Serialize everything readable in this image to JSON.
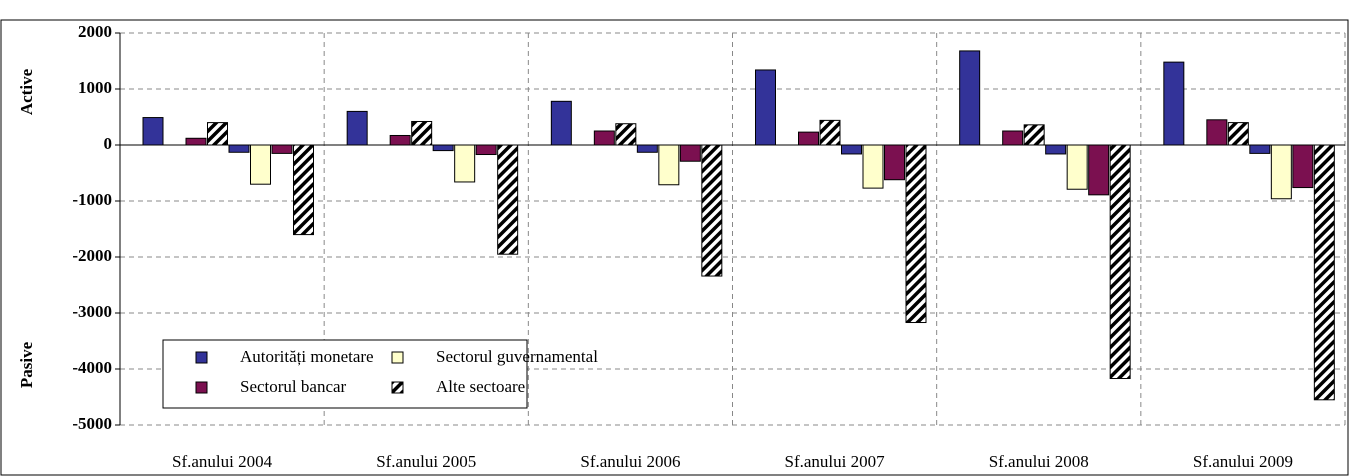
{
  "chart_data": {
    "type": "bar",
    "y_label_top": "Active",
    "y_label_bottom": "Pasive",
    "categories": [
      "Sf.anului 2004",
      "Sf.anului 2005",
      "Sf.anului 2006",
      "Sf.anului 2007",
      "Sf.anului 2008",
      "Sf.anului 2009"
    ],
    "series": [
      {
        "name": "Autorități monetare",
        "color": "#333399",
        "hatch": false,
        "values": [
          490,
          600,
          780,
          1340,
          1680,
          1480
        ],
        "values_pasive": [
          -130,
          -100,
          -130,
          -160,
          -160,
          -150
        ]
      },
      {
        "name": "Sectorul guvernamental",
        "color": "#ffffcc",
        "hatch": false,
        "values": [
          0,
          0,
          0,
          0,
          0,
          0
        ],
        "values_pasive": [
          -700,
          -660,
          -710,
          -770,
          -790,
          -960
        ]
      },
      {
        "name": "Sectorul bancar",
        "color": "#7b1050",
        "hatch": false,
        "values": [
          120,
          170,
          250,
          230,
          250,
          450
        ],
        "values_pasive": [
          -150,
          -170,
          -290,
          -620,
          -890,
          -760
        ]
      },
      {
        "name": "Alte sectoare",
        "color": "#ffffff",
        "hatch": true,
        "values": [
          400,
          420,
          380,
          440,
          360,
          400
        ],
        "values_pasive": [
          -1600,
          -1950,
          -2340,
          -3170,
          -4170,
          -4550
        ]
      }
    ],
    "ylim": [
      -5000,
      2000
    ],
    "yticks": [
      2000,
      1000,
      0,
      -1000,
      -2000,
      -3000,
      -4000,
      -5000
    ],
    "grid": true
  }
}
